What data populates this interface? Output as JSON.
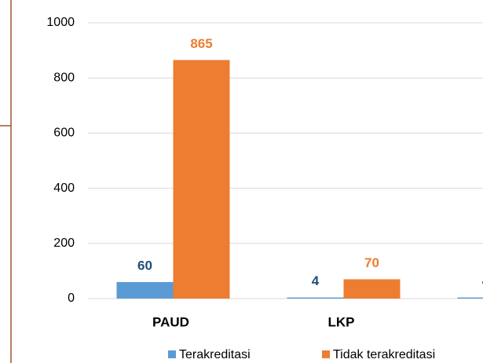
{
  "chart_data": {
    "type": "bar",
    "categories": [
      "PAUD",
      "LKP",
      null
    ],
    "series": [
      {
        "name": "Terakreditasi",
        "color": "#5b9bd5",
        "label_color": "#1f4e79",
        "values": [
          60,
          4,
          4
        ]
      },
      {
        "name": "Tidak terakreditasi",
        "color": "#ed7d31",
        "label_color": "#ed7d31",
        "values": [
          865,
          70,
          null
        ]
      }
    ],
    "ylim": [
      0,
      1000
    ],
    "yticks": [
      0,
      200,
      400,
      600,
      800,
      1000
    ],
    "grid": true,
    "legend": "bottom"
  }
}
